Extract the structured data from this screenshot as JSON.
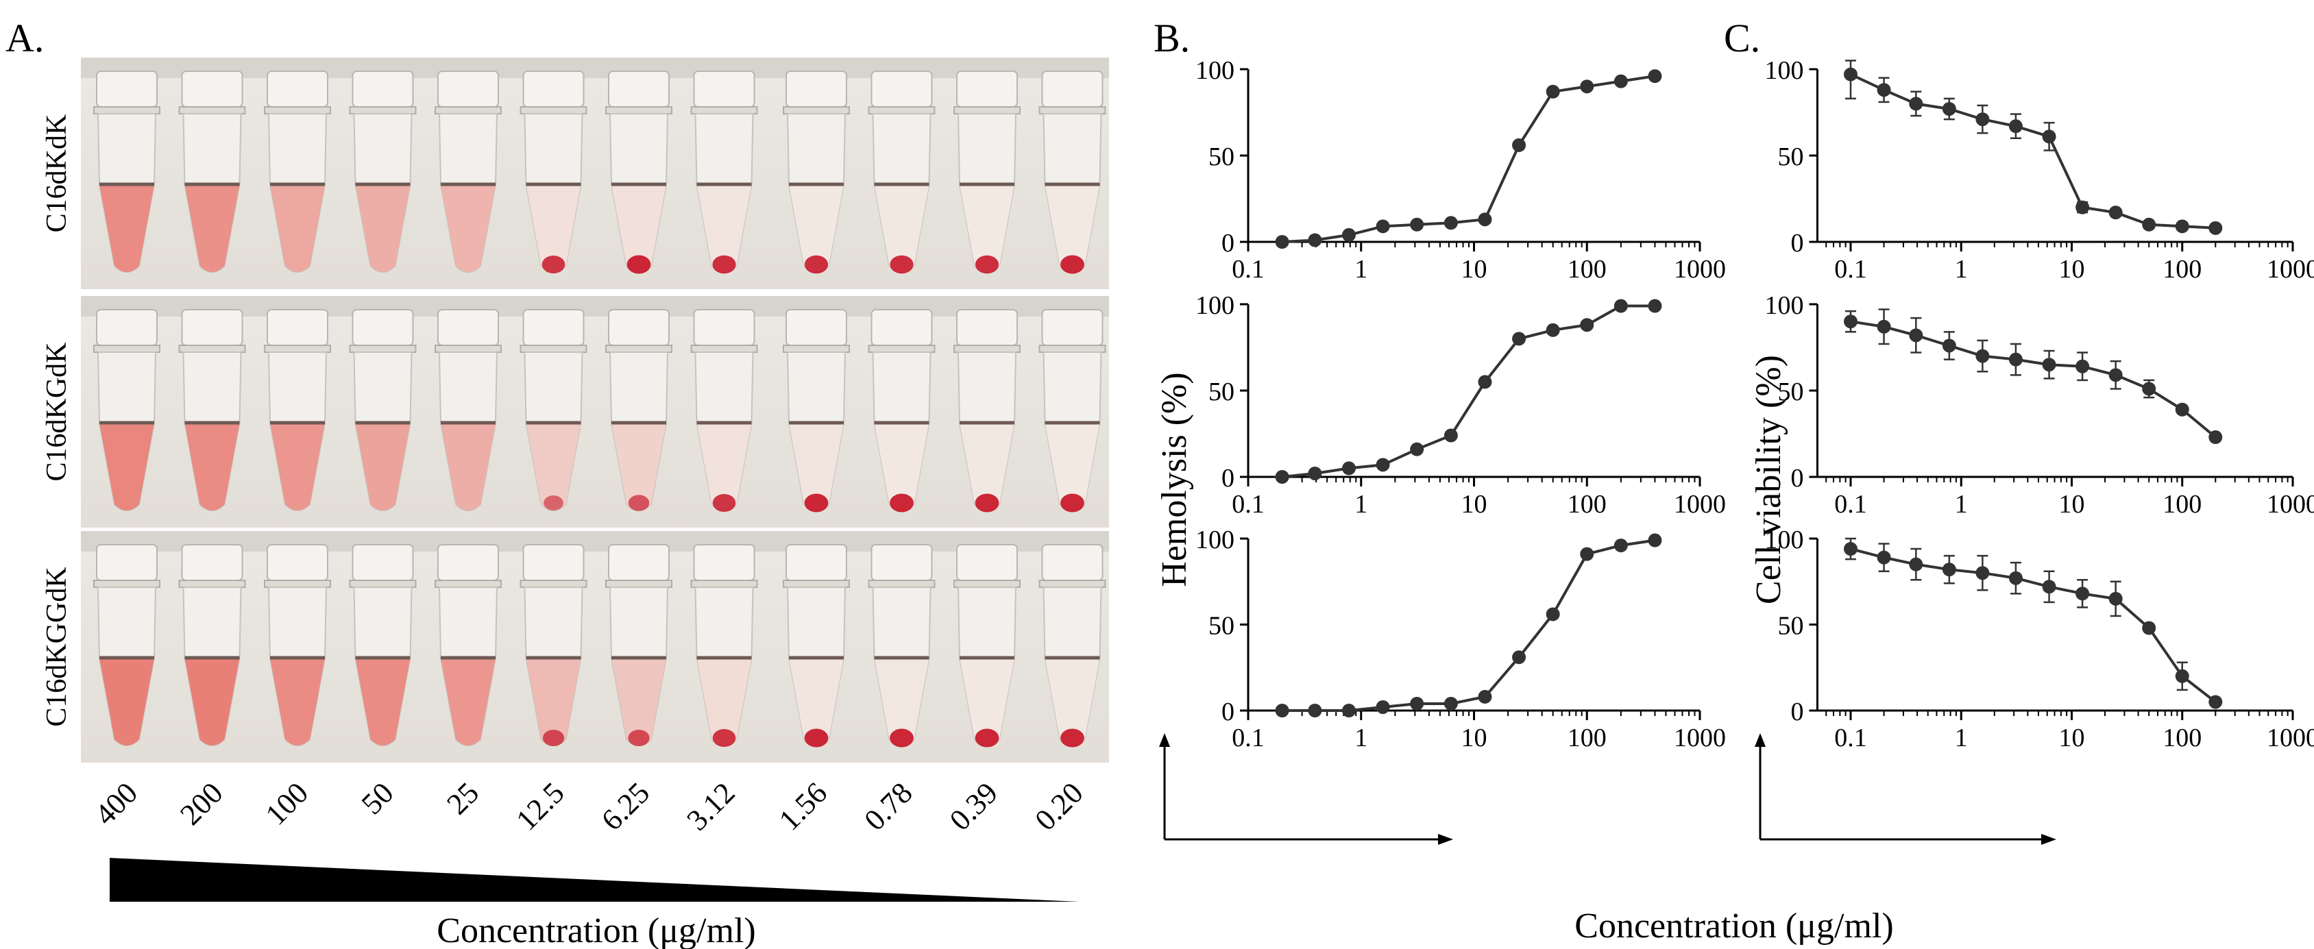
{
  "panels": {
    "a": "A.",
    "b": "B.",
    "c": "C."
  },
  "tubes": {
    "rows": [
      "C16dKdK",
      "C16dKGdK",
      "C16dKGGdK"
    ],
    "concentrations": [
      "400",
      "200",
      "100",
      "50",
      "25",
      "12.5",
      "6.25",
      "3.12",
      "1.56",
      "0.78",
      "0.39",
      "0.20"
    ],
    "gradient_caption": "Concentration (μg/ml)",
    "hemolysis_fraction": [
      [
        0.85,
        0.8,
        0.6,
        0.55,
        0.5,
        0.12,
        0.12,
        0.08,
        0.05,
        0.05,
        0.04,
        0.04
      ],
      [
        0.9,
        0.85,
        0.75,
        0.65,
        0.55,
        0.3,
        0.25,
        0.1,
        0.08,
        0.06,
        0.05,
        0.04
      ],
      [
        0.95,
        0.95,
        0.85,
        0.85,
        0.75,
        0.45,
        0.35,
        0.15,
        0.08,
        0.07,
        0.06,
        0.05
      ]
    ],
    "pellet_fraction": [
      [
        0,
        0,
        0,
        0,
        0,
        0.8,
        0.9,
        0.85,
        0.85,
        0.85,
        0.85,
        0.9
      ],
      [
        0,
        0,
        0,
        0,
        0,
        0.4,
        0.55,
        0.8,
        0.9,
        0.9,
        0.9,
        0.9
      ],
      [
        0,
        0,
        0,
        0,
        0,
        0.6,
        0.6,
        0.8,
        0.9,
        0.9,
        0.9,
        0.9
      ]
    ]
  },
  "colors": {
    "line": "#333333",
    "marker": "#333333",
    "blood": "#e87a72",
    "pellet": "#c8182a",
    "tube_bg": "#e8e5df"
  },
  "chart_data": [
    {
      "type": "line",
      "panel": "B",
      "row": 1,
      "x": [
        0.2,
        0.39,
        0.78,
        1.56,
        3.12,
        6.25,
        12.5,
        25,
        50,
        100,
        200,
        400
      ],
      "values": [
        0,
        1,
        4,
        9,
        10,
        11,
        13,
        56,
        87,
        90,
        93,
        96
      ],
      "error": [],
      "xscale": "log",
      "xlim": [
        0.1,
        1000
      ],
      "ylim": [
        0,
        100
      ],
      "xticks": [
        "0.1",
        "1",
        "10",
        "100",
        "1000"
      ],
      "yticks": [
        "0",
        "50",
        "100"
      ],
      "ylabel": "Hemolysis (%)",
      "xlabel": "Concentration (μg/ml)"
    },
    {
      "type": "line",
      "panel": "B",
      "row": 2,
      "x": [
        0.2,
        0.39,
        0.78,
        1.56,
        3.12,
        6.25,
        12.5,
        25,
        50,
        100,
        200,
        400
      ],
      "values": [
        0,
        2,
        5,
        7,
        16,
        24,
        55,
        80,
        85,
        88,
        99,
        99
      ],
      "error": [],
      "xscale": "log",
      "xlim": [
        0.1,
        1000
      ],
      "ylim": [
        0,
        100
      ],
      "xticks": [
        "0.1",
        "1",
        "10",
        "100",
        "1000"
      ],
      "yticks": [
        "0",
        "50",
        "100"
      ]
    },
    {
      "type": "line",
      "panel": "B",
      "row": 3,
      "x": [
        0.2,
        0.39,
        0.78,
        1.56,
        3.12,
        6.25,
        12.5,
        25,
        50,
        100,
        200,
        400
      ],
      "values": [
        0,
        0,
        0,
        2,
        4,
        4,
        8,
        31,
        56,
        91,
        96,
        99
      ],
      "error": [],
      "xscale": "log",
      "xlim": [
        0.1,
        1000
      ],
      "ylim": [
        0,
        100
      ],
      "xticks": [
        "0.1",
        "1",
        "10",
        "100",
        "1000"
      ],
      "yticks": [
        "0",
        "50",
        "100"
      ]
    },
    {
      "type": "line",
      "panel": "C",
      "row": 1,
      "x": [
        0.1,
        0.2,
        0.39,
        0.78,
        1.56,
        3.12,
        6.25,
        12.5,
        25,
        50,
        100,
        200
      ],
      "values": [
        97,
        88,
        80,
        77,
        71,
        67,
        61,
        20,
        17,
        10,
        9,
        8
      ],
      "error": [
        14,
        7,
        7,
        6,
        8,
        7,
        8,
        3,
        2,
        2,
        2,
        2
      ],
      "xscale": "log",
      "xlim": [
        0.05,
        1000
      ],
      "ylim": [
        0,
        100
      ],
      "xticks": [
        "0.1",
        "1",
        "10",
        "100",
        "1000"
      ],
      "yticks": [
        "0",
        "50",
        "100"
      ],
      "ylabel": "Cell viability (%)",
      "xlabel": "Concentration (μg/ml)"
    },
    {
      "type": "line",
      "panel": "C",
      "row": 2,
      "x": [
        0.1,
        0.2,
        0.39,
        0.78,
        1.56,
        3.12,
        6.25,
        12.5,
        25,
        50,
        100,
        200
      ],
      "values": [
        90,
        87,
        82,
        76,
        70,
        68,
        65,
        64,
        59,
        51,
        39,
        23
      ],
      "error": [
        6,
        10,
        10,
        8,
        9,
        9,
        8,
        8,
        8,
        5,
        2,
        2
      ],
      "xscale": "log",
      "xlim": [
        0.05,
        1000
      ],
      "ylim": [
        0,
        100
      ],
      "xticks": [
        "0.1",
        "1",
        "10",
        "100",
        "1000"
      ],
      "yticks": [
        "0",
        "50",
        "100"
      ]
    },
    {
      "type": "line",
      "panel": "C",
      "row": 3,
      "x": [
        0.1,
        0.2,
        0.39,
        0.78,
        1.56,
        3.12,
        6.25,
        12.5,
        25,
        50,
        100,
        200
      ],
      "values": [
        94,
        89,
        85,
        82,
        80,
        77,
        72,
        68,
        65,
        48,
        20,
        5
      ],
      "error": [
        6,
        8,
        9,
        8,
        10,
        9,
        9,
        8,
        10,
        2,
        8,
        2
      ],
      "xscale": "log",
      "xlim": [
        0.05,
        1000
      ],
      "ylim": [
        0,
        100
      ],
      "xticks": [
        "0.1",
        "1",
        "10",
        "100",
        "1000"
      ],
      "yticks": [
        "0",
        "50",
        "100"
      ]
    }
  ]
}
